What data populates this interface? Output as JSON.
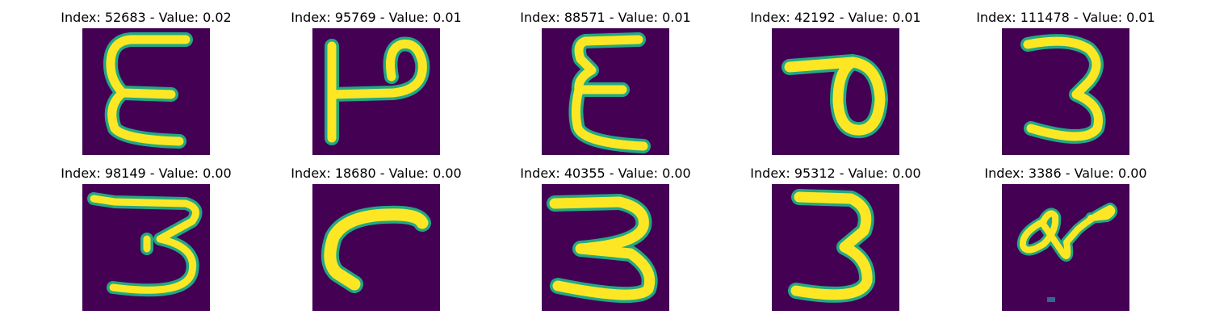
{
  "colors": {
    "background": "#440154",
    "stroke": "#fde725",
    "edge": "#22a884"
  },
  "tiles": [
    {
      "title": "Index: 52683 - Value: 0.02",
      "glyph": "epsilon-like"
    },
    {
      "title": "Index: 95769 - Value: 0.01",
      "glyph": "rotated-P"
    },
    {
      "title": "Index: 88571 - Value: 0.01",
      "glyph": "sigma-like"
    },
    {
      "title": "Index: 42192 - Value: 0.01",
      "glyph": "loop-hook"
    },
    {
      "title": "Index: 111478 - Value: 0.01",
      "glyph": "three"
    },
    {
      "title": "Index: 98149 - Value: 0.00",
      "glyph": "three-wide"
    },
    {
      "title": "Index: 18680 - Value: 0.00",
      "glyph": "curve"
    },
    {
      "title": "Index: 40355 - Value: 0.00",
      "glyph": "three-bold"
    },
    {
      "title": "Index: 95312 - Value: 0.00",
      "glyph": "three-narrow"
    },
    {
      "title": "Index: 3386 - Value: 0.00",
      "glyph": "scribble"
    }
  ]
}
